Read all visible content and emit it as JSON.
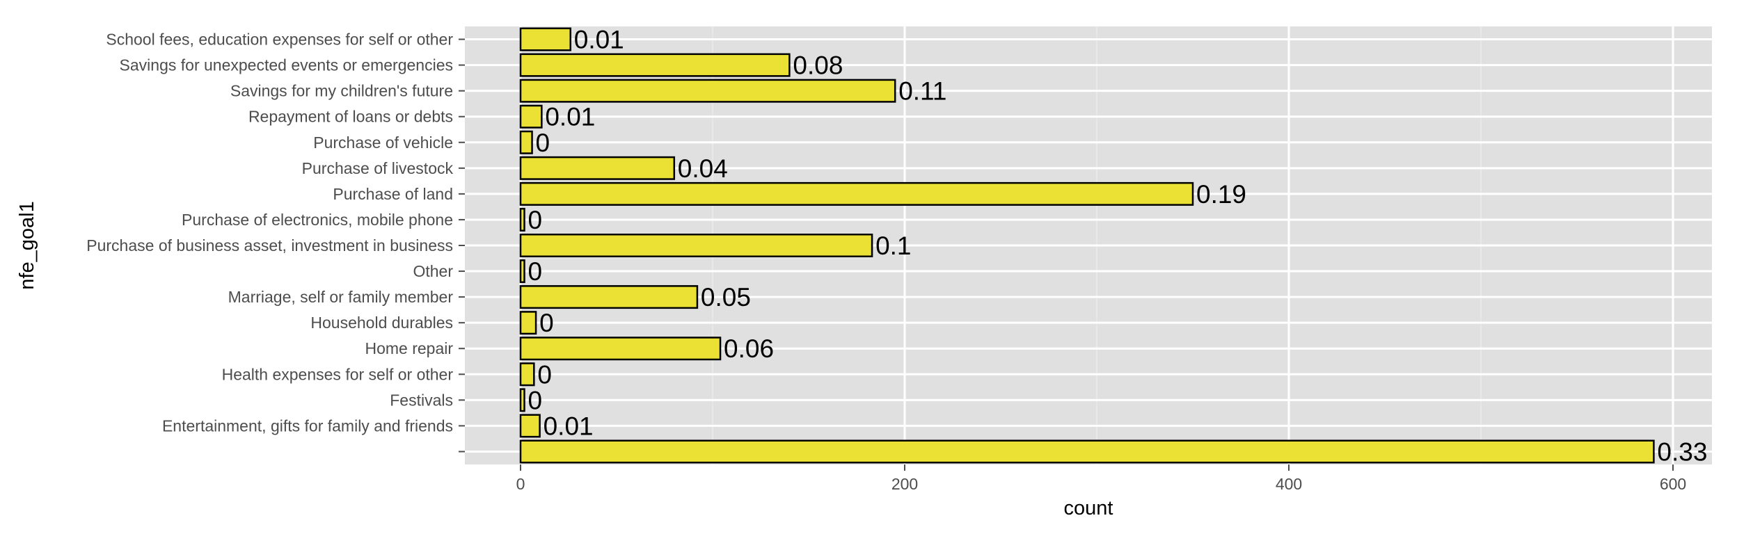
{
  "chart_data": {
    "type": "bar",
    "orientation": "horizontal",
    "xlabel": "count",
    "ylabel": "nfe_goal1",
    "xlim": [
      -30,
      620
    ],
    "xticks": [
      0,
      200,
      400,
      600
    ],
    "xtick_labels": [
      "0",
      "200",
      "400",
      "600"
    ],
    "grid": true,
    "bar_color": "#EBE134",
    "bar_outline": "#000000",
    "panel_background": "#E0E0E0",
    "grid_color": "#FFFFFF",
    "categories": [
      "School fees, education expenses for self or other",
      "Savings for unexpected events or emergencies",
      "Savings for my children's future",
      "Repayment of loans or debts",
      "Purchase of vehicle",
      "Purchase of livestock",
      "Purchase of land",
      "Purchase of electronics, mobile phone",
      "Purchase of business asset, investment in business",
      "Other",
      "Marriage, self or family member",
      "Household durables",
      "Home repair",
      "Health expenses for self or other",
      "Festivals",
      "Entertainment, gifts for family and friends",
      ""
    ],
    "values": [
      26,
      140,
      195,
      11,
      6,
      80,
      350,
      2,
      183,
      2,
      92,
      8,
      104,
      7,
      2,
      10,
      590
    ],
    "data_labels": [
      "0.01",
      "0.08",
      "0.11",
      "0.01",
      "0",
      "0.04",
      "0.19",
      "0",
      "0.1",
      "0",
      "0.05",
      "0",
      "0.06",
      "0",
      "0",
      "0.01",
      "0.33"
    ]
  }
}
